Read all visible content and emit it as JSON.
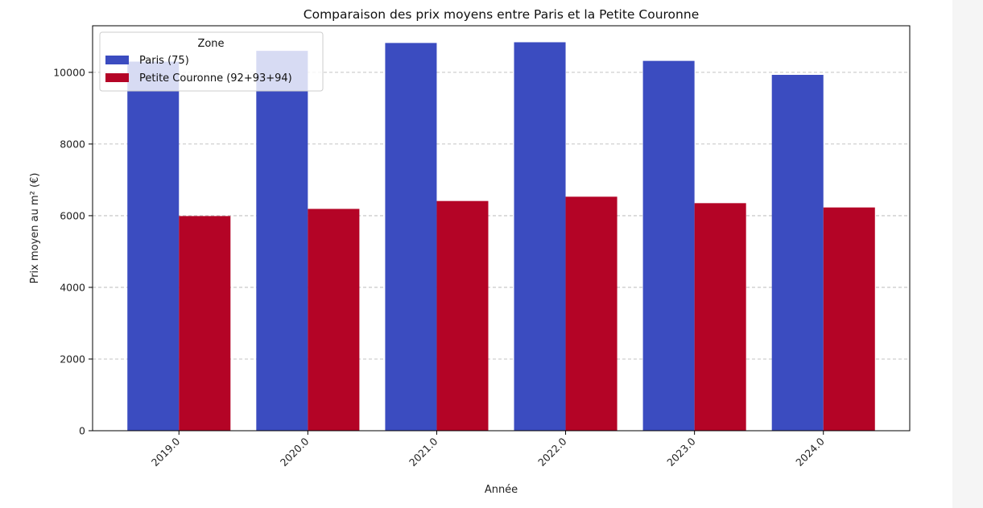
{
  "chart_data": {
    "type": "bar",
    "title": "Comparaison des prix moyens entre Paris et la Petite Couronne",
    "xlabel": "Année",
    "ylabel": "Prix moyen au m² (€)",
    "categories": [
      "2019.0",
      "2020.0",
      "2021.0",
      "2022.0",
      "2023.0",
      "2024.0"
    ],
    "series": [
      {
        "name": "Paris (75)",
        "color": "#3b4cc0",
        "values": [
          10300,
          10600,
          10820,
          10840,
          10320,
          9930
        ]
      },
      {
        "name": "Petite Couronne (92+93+94)",
        "color": "#b40426",
        "values": [
          5990,
          6190,
          6410,
          6530,
          6350,
          6230
        ]
      }
    ],
    "ylim": [
      0,
      11300
    ],
    "yticks": [
      0,
      2000,
      4000,
      6000,
      8000,
      10000
    ],
    "grid": "y-dashed",
    "legend": {
      "title": "Zone",
      "placement": "top-left"
    }
  }
}
